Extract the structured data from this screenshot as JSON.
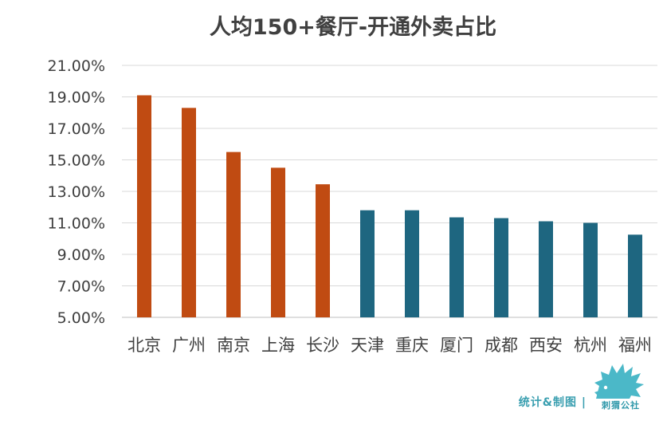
{
  "chart_data": {
    "type": "bar",
    "title": "人均150+餐厅-开通外卖占比",
    "categories": [
      "北京",
      "广州",
      "南京",
      "上海",
      "长沙",
      "天津",
      "重庆",
      "厦门",
      "成都",
      "西安",
      "杭州",
      "福州"
    ],
    "values": [
      19.1,
      18.3,
      15.5,
      14.5,
      13.45,
      11.8,
      11.8,
      11.35,
      11.3,
      11.1,
      11.0,
      10.25
    ],
    "value_unit": "%",
    "ylim": [
      5,
      21
    ],
    "yticks": [
      "21.00%",
      "19.00%",
      "17.00%",
      "15.00%",
      "13.00%",
      "11.00%",
      "9.00%",
      "7.00%",
      "5.00%"
    ],
    "grid": true,
    "bar_colors": [
      "#c04b12",
      "#c04b12",
      "#c04b12",
      "#c04b12",
      "#c04b12",
      "#1e6680",
      "#1e6680",
      "#1e6680",
      "#1e6680",
      "#1e6680",
      "#1e6680",
      "#1e6680"
    ],
    "xlabel": "",
    "ylabel": ""
  },
  "footer": {
    "credit": "统计&制图 |",
    "logo_text": "刺猬公社",
    "logo_color": "#4bb8c8"
  }
}
